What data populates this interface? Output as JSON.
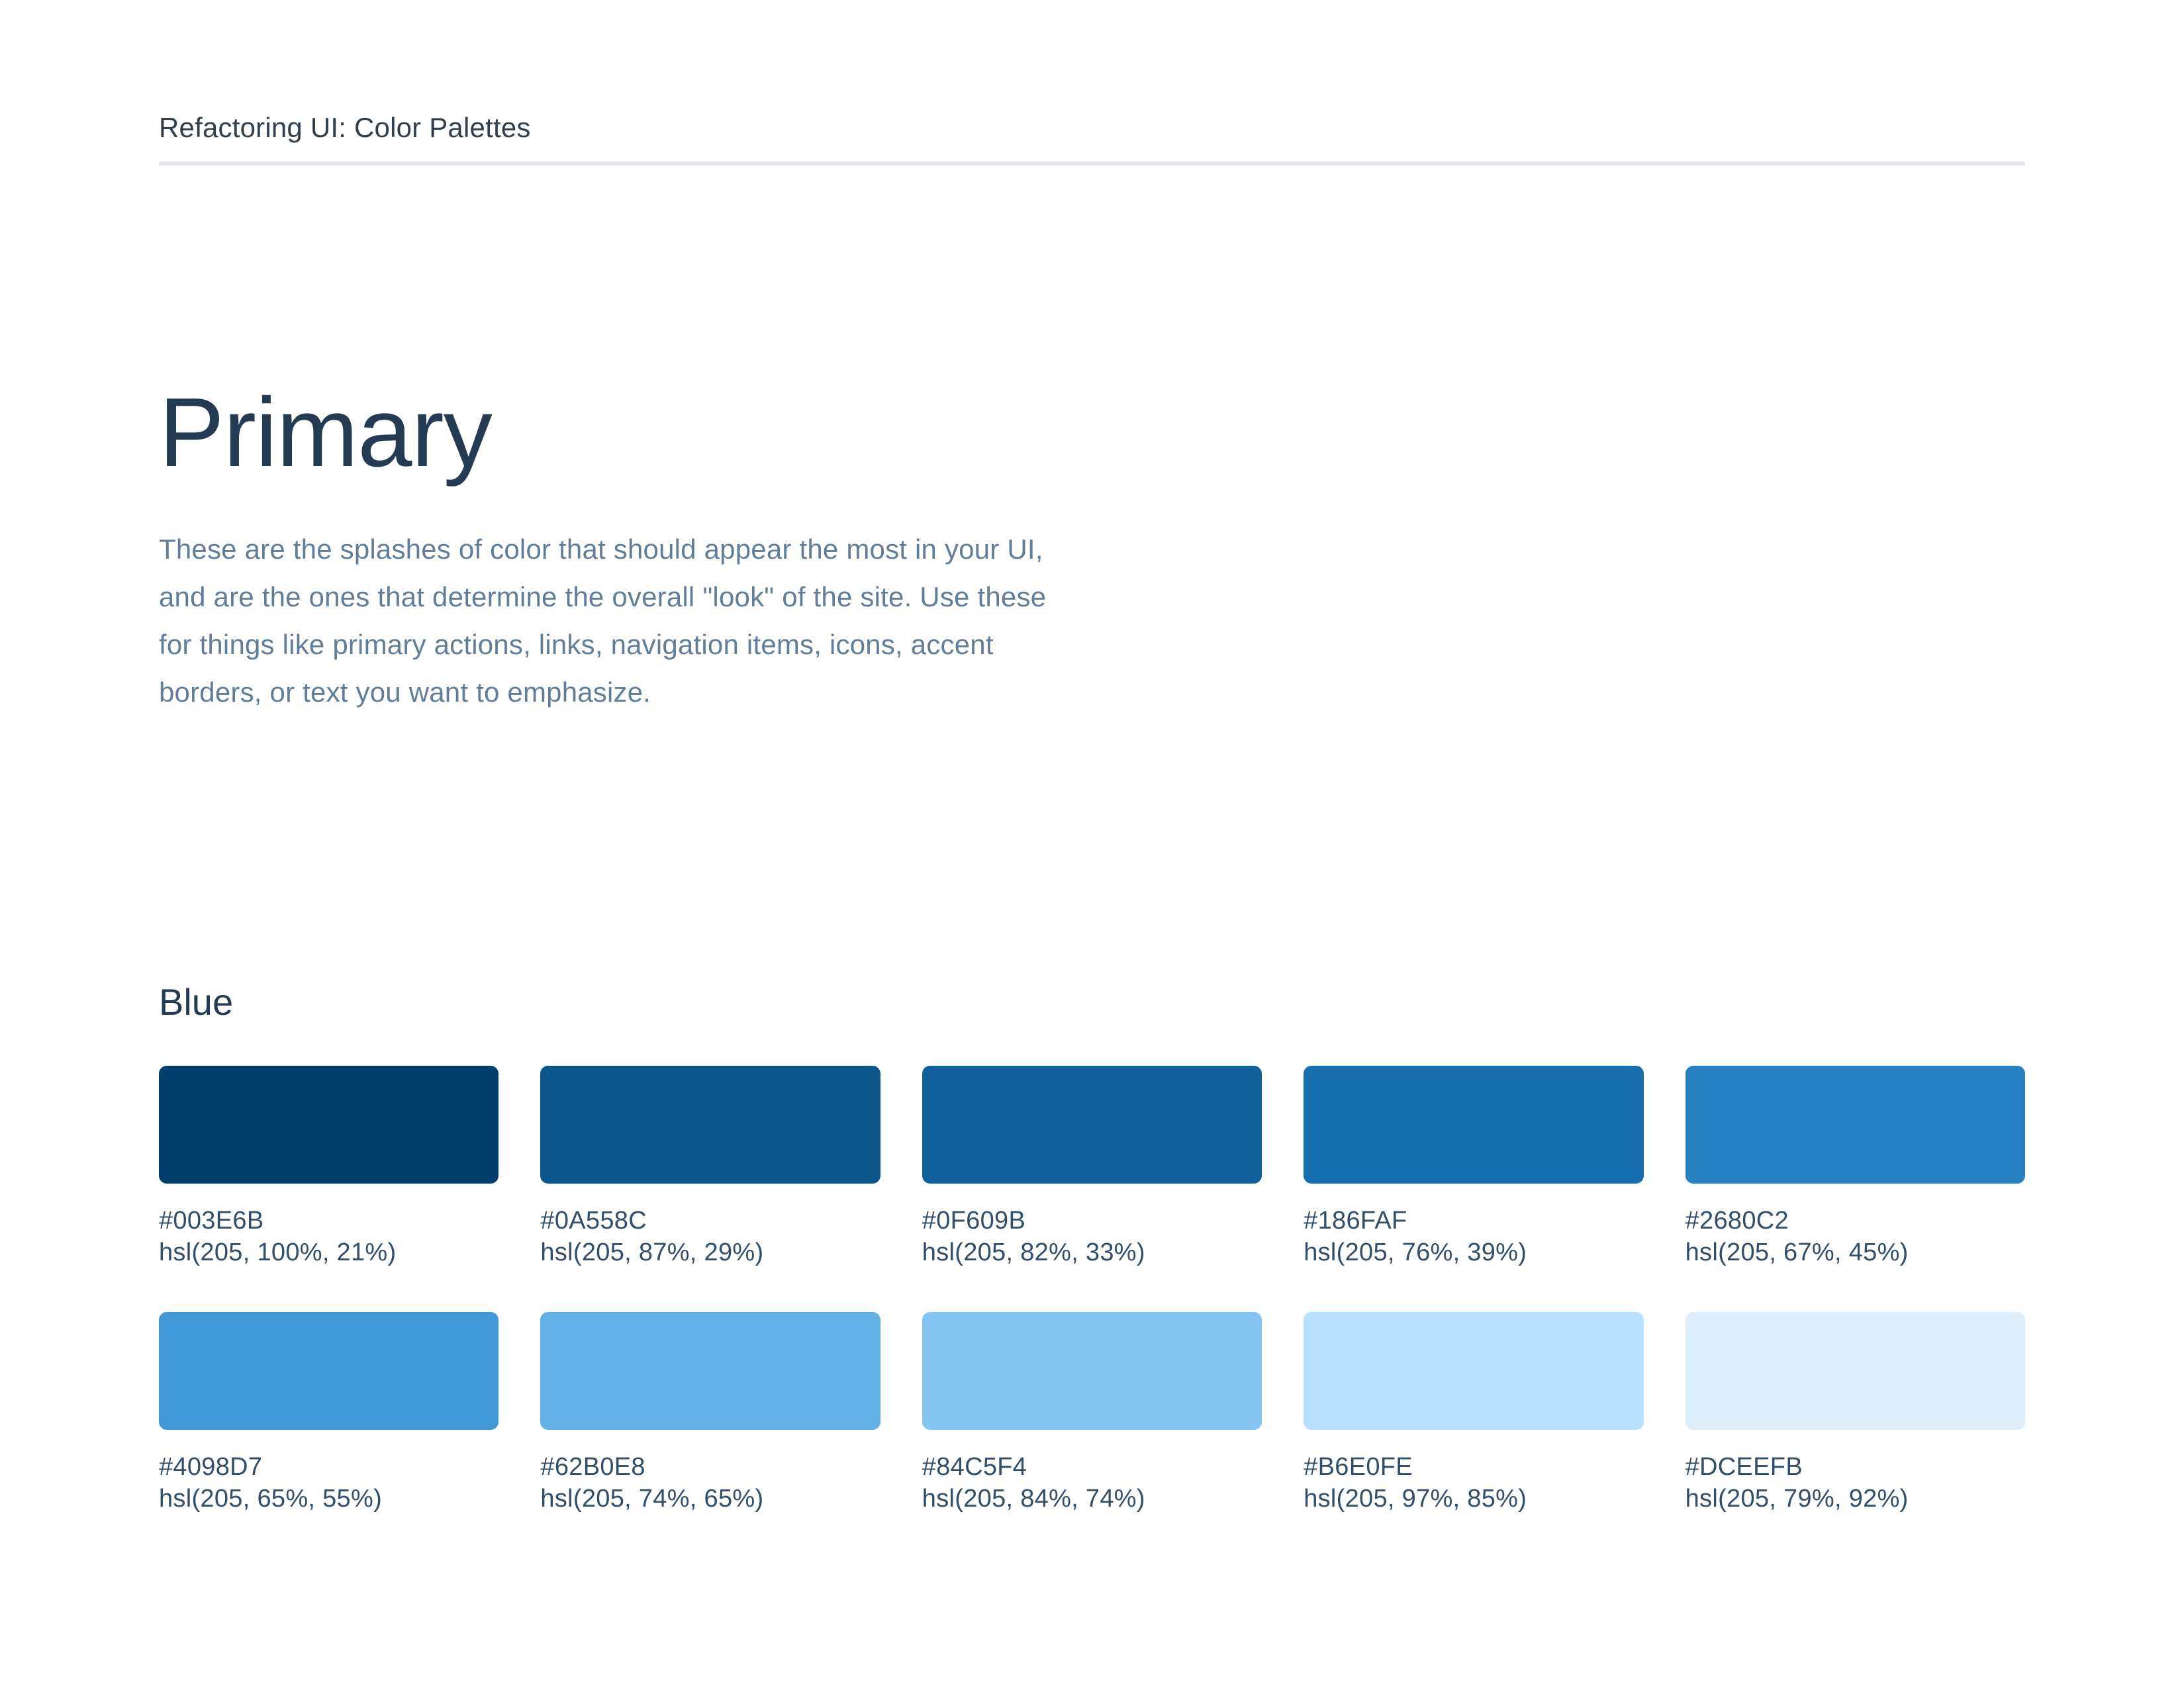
{
  "header": {
    "title": "Refactoring UI: Color Palettes"
  },
  "section": {
    "title": "Primary",
    "description_lines": [
      "These are the splashes of color that should appear the most in your UI,",
      "and are the ones that determine the overall \"look\" of the site. Use these",
      "for things like primary actions, links, navigation items, icons, accent",
      "borders, or text you want to emphasize."
    ]
  },
  "palette": {
    "name": "Blue",
    "swatches": [
      {
        "hex": "#003E6B",
        "hsl": "hsl(205, 100%, 21%)"
      },
      {
        "hex": "#0A558C",
        "hsl": "hsl(205, 87%, 29%)"
      },
      {
        "hex": "#0F609B",
        "hsl": "hsl(205, 82%, 33%)"
      },
      {
        "hex": "#186FAF",
        "hsl": "hsl(205, 76%, 39%)"
      },
      {
        "hex": "#2680C2",
        "hsl": "hsl(205, 67%, 45%)"
      },
      {
        "hex": "#4098D7",
        "hsl": "hsl(205, 65%, 55%)"
      },
      {
        "hex": "#62B0E8",
        "hsl": "hsl(205, 74%, 65%)"
      },
      {
        "hex": "#84C5F4",
        "hsl": "hsl(205, 84%, 74%)"
      },
      {
        "hex": "#B6E0FE",
        "hsl": "hsl(205, 97%, 85%)"
      },
      {
        "hex": "#DCEEFB",
        "hsl": "hsl(205, 79%, 92%)"
      }
    ]
  },
  "colors": {
    "background": "#FFFFFF",
    "header_text": "#323F4B",
    "divider": "#E4E7EB",
    "heading_text": "#243B53",
    "body_text": "#627D98",
    "label_text": "#334E68"
  }
}
